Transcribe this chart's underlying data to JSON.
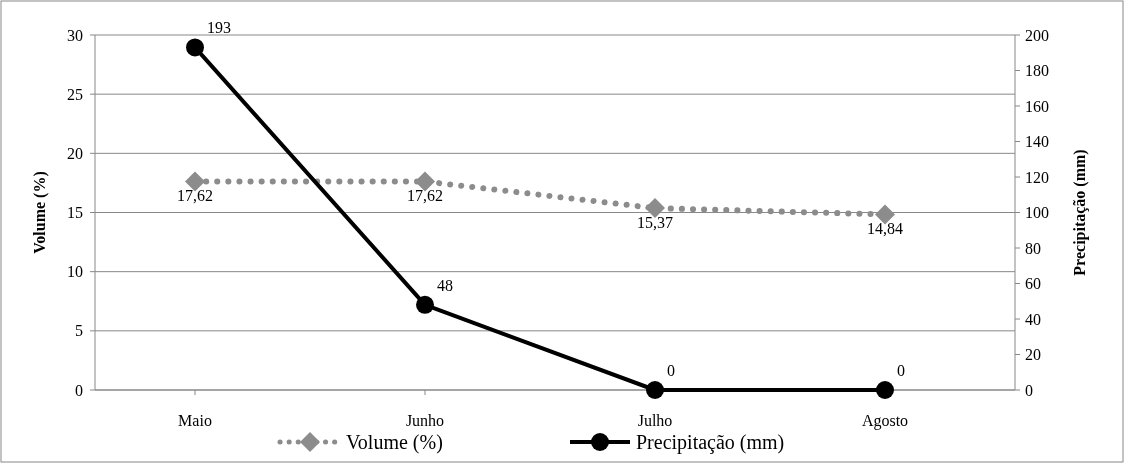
{
  "chart_data": {
    "type": "line",
    "ylabel": "Volume (%)",
    "y2label": "Precipitação (mm)",
    "categories": [
      "Maio",
      "Junho",
      "Julho",
      "Agosto"
    ],
    "series": [
      {
        "name": "Volume (%)",
        "color": "#8c8c8c",
        "values": [
          17.62,
          17.62,
          15.37,
          14.84
        ],
        "value_labels": [
          "17,62",
          "17,62",
          "15,37",
          "14,84"
        ],
        "marker": "diamond",
        "line_style": "dotted"
      },
      {
        "name": "Precipitação (mm)",
        "color": "#000000",
        "values": [
          193,
          48,
          0,
          0
        ],
        "value_labels": [
          "193",
          "48",
          "0",
          "0"
        ],
        "marker": "circle",
        "line_style": "solid",
        "axis": "y2"
      }
    ],
    "ylim": [
      0,
      30
    ],
    "yticks": [
      0,
      5,
      10,
      15,
      20,
      25,
      30
    ],
    "y2lim": [
      0,
      200
    ],
    "y2ticks": [
      0,
      20,
      40,
      60,
      80,
      100,
      120,
      140,
      160,
      180,
      200
    ],
    "grid": "y",
    "legend": "bottom"
  }
}
